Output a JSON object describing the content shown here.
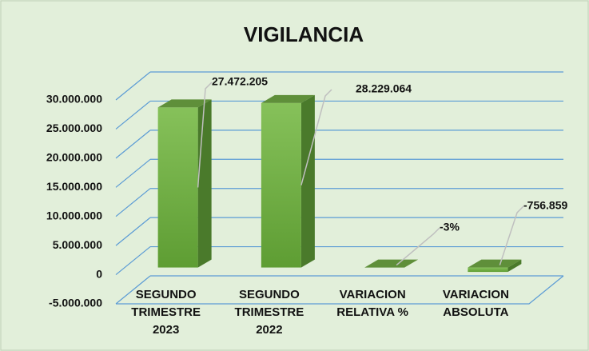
{
  "chart_data": {
    "type": "bar3d",
    "title": "VIGILANCIA",
    "categories": [
      "SEGUNDO\nTRIMESTRE\n2023",
      "SEGUNDO\nTRIMESTRE\n2022",
      "VARIACION\nRELATIVA %",
      "VARIACION\nABSOLUTA"
    ],
    "values": [
      27472205,
      28229064,
      -3,
      -756859
    ],
    "value_labels": [
      "27.472.205",
      "28.229.064",
      "-3%",
      "-756.859"
    ],
    "color": "#70ad47",
    "ylim": [
      -5000000,
      30000000
    ],
    "yticks": [
      {
        "value": -5000000,
        "label": "-5.000.000"
      },
      0,
      {
        "value": 5000000,
        "label": "5.000.000"
      },
      {
        "value": 10000000,
        "label": "10.000.000"
      },
      {
        "value": 15000000,
        "label": "15.000.000"
      },
      {
        "value": 20000000,
        "label": "20.000.000"
      },
      {
        "value": 25000000,
        "label": "25.000.000"
      },
      {
        "value": 30000000,
        "label": "30.000.000"
      }
    ],
    "grid": true
  }
}
